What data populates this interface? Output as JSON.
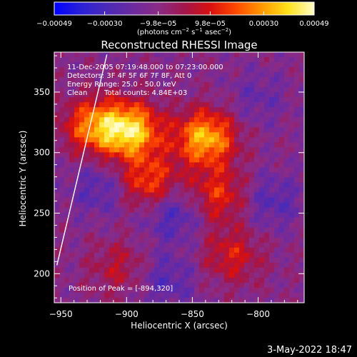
{
  "chart_data": {
    "type": "heatmap",
    "title": "Reconstructed RHESSI Image",
    "xlabel": "Heliocentric X (arcsec)",
    "ylabel": "Heliocentric Y (arcsec)",
    "xlim": [
      -955,
      -765
    ],
    "ylim": [
      176,
      383
    ],
    "x_ticks": [
      -950,
      -900,
      -850,
      -800
    ],
    "x_tick_labels": [
      "−950",
      "−900",
      "−850",
      "−800"
    ],
    "y_ticks": [
      200,
      250,
      300,
      350
    ],
    "y_tick_labels": [
      "200",
      "250",
      "300",
      "350"
    ],
    "colorbar": {
      "range": [
        -0.00049,
        0.00049
      ],
      "ticks": [
        -0.00049,
        -0.0003,
        -9.8e-05,
        9.8e-05,
        0.0003,
        0.00049
      ],
      "tick_labels": [
        "−0.00049",
        "−0.00030",
        "−9.8e−05",
        "9.8e−05",
        "0.00030",
        "0.00049"
      ],
      "label_main": "(photons cm",
      "label_exp1": "−2",
      "label_mid": " s",
      "label_exp2": "−1",
      "label_mid2": " asec",
      "label_exp3": "−2",
      "label_end": ")",
      "stops": [
        "#0000ff",
        "#2a20d8",
        "#4a2ab8",
        "#6c2aa0",
        "#8a2b86",
        "#a1164b",
        "#d81010",
        "#ff4a00",
        "#ff9a00",
        "#ffe21a",
        "#fffcc8"
      ]
    },
    "annotations": {
      "time_range": "11-Dec-2005 07:19:48.000 to 07:23:00.000",
      "detectors": "Detectors: 3F 4F 5F 6F 7F 8F, Att 0",
      "energy_range": "Energy Range: 25.0 - 50.0 keV",
      "method": "Clean",
      "total_counts": "Total counts: 4.84E+03",
      "peak": "Position of Peak = [-894,320]"
    },
    "limb_line": {
      "x": [
        -953,
        -915
      ],
      "y": [
        207,
        381
      ]
    },
    "hot_spots": [
      {
        "x": -897,
        "y": 318,
        "intensity": 0.00049
      },
      {
        "x": -840,
        "y": 312,
        "intensity": 0.00045
      },
      {
        "x": -925,
        "y": 322,
        "intensity": 0.00035
      },
      {
        "x": -883,
        "y": 275,
        "intensity": 0.0003
      },
      {
        "x": -830,
        "y": 265,
        "intensity": 0.00025
      },
      {
        "x": -820,
        "y": 215,
        "intensity": 0.0002
      },
      {
        "x": -905,
        "y": 205,
        "intensity": 0.00015
      }
    ],
    "cold_spots": [
      {
        "x": -865,
        "y": 250,
        "intensity": -0.0002
      },
      {
        "x": -920,
        "y": 270,
        "intensity": -0.00015
      },
      {
        "x": -870,
        "y": 195,
        "intensity": -0.00015
      },
      {
        "x": -790,
        "y": 260,
        "intensity": -0.00015
      },
      {
        "x": -800,
        "y": 345,
        "intensity": -0.0001
      }
    ]
  },
  "footer": {
    "timestamp": "3-May-2022 18:47"
  }
}
